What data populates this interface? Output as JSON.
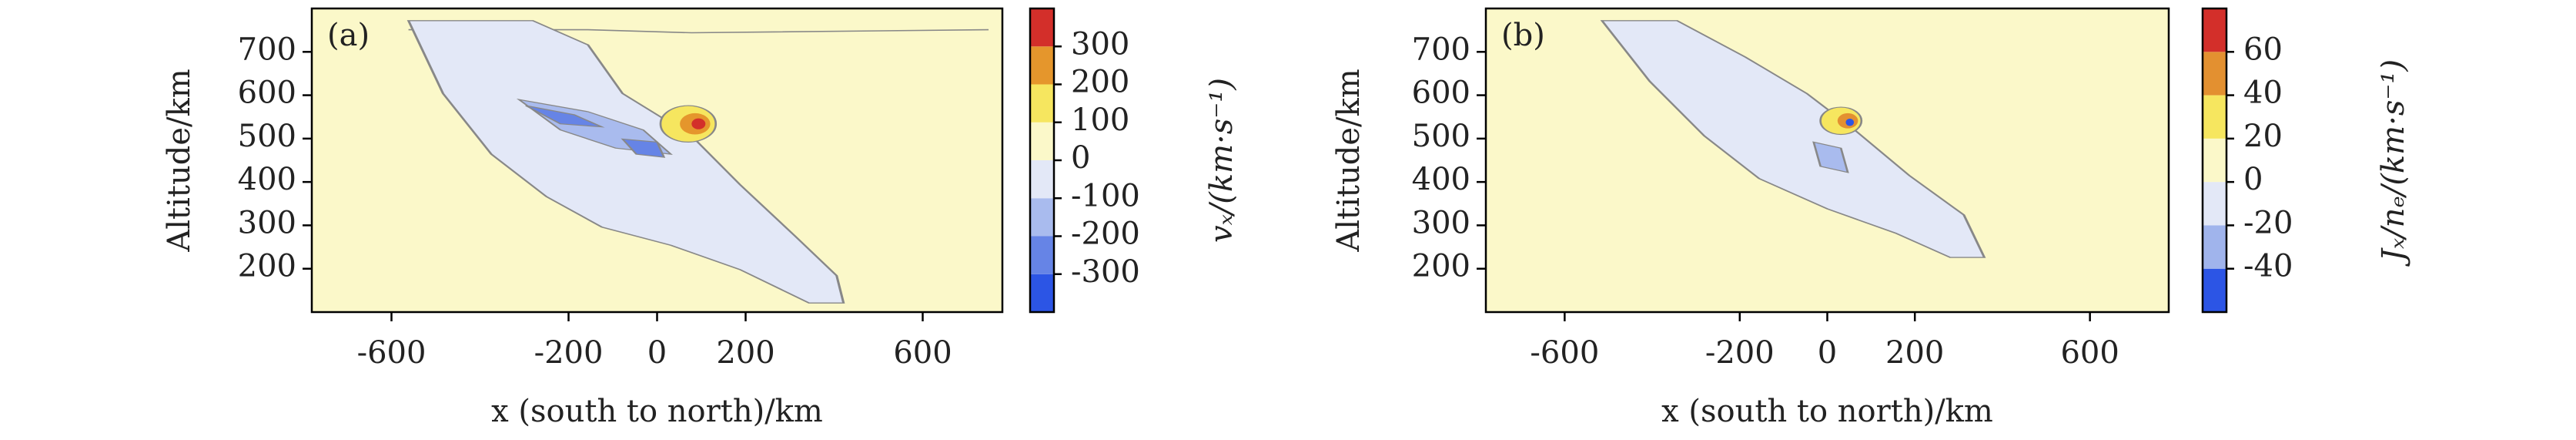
{
  "chart_data": [
    {
      "type": "contour",
      "panel_label": "(a)",
      "xlabel": "x (south to north)/km",
      "ylabel": "Altitude/km",
      "xlim": [
        -780,
        780
      ],
      "xticks": [
        -600,
        -200,
        0,
        200,
        600
      ],
      "ylim": [
        100,
        800
      ],
      "yticks": [
        200,
        300,
        400,
        500,
        600,
        700
      ],
      "colorbar_label": "vₓ/(km·s⁻¹)",
      "levels": [
        -400,
        -300,
        -200,
        -100,
        0,
        100,
        200,
        300,
        400
      ],
      "cticks": [
        300,
        200,
        100,
        0,
        -100,
        -200,
        -300
      ],
      "colors": [
        "#2c55e5",
        "#6684e6",
        "#a9bbee",
        "#e3e8f7",
        "#fbf8c9",
        "#f6e65f",
        "#e5962c",
        "#d32f2a"
      ]
    },
    {
      "type": "contour",
      "panel_label": "(b)",
      "xlabel": "x (south to north)/km",
      "ylabel": "Altitude/km",
      "xlim": [
        -780,
        780
      ],
      "xticks": [
        -600,
        -200,
        0,
        200,
        600
      ],
      "ylim": [
        100,
        800
      ],
      "yticks": [
        200,
        300,
        400,
        500,
        600,
        700
      ],
      "colorbar_label": "Jₓ/nₑ/(km·s⁻¹)",
      "levels": [
        -60,
        -40,
        -20,
        0,
        20,
        40,
        60,
        80
      ],
      "cticks": [
        60,
        40,
        20,
        0,
        -20,
        -40
      ],
      "colors": [
        "#2c55e5",
        "#a0b4ec",
        "#e3e8f7",
        "#fbf8c9",
        "#f6e65f",
        "#e39030",
        "#d32f2a"
      ]
    }
  ]
}
